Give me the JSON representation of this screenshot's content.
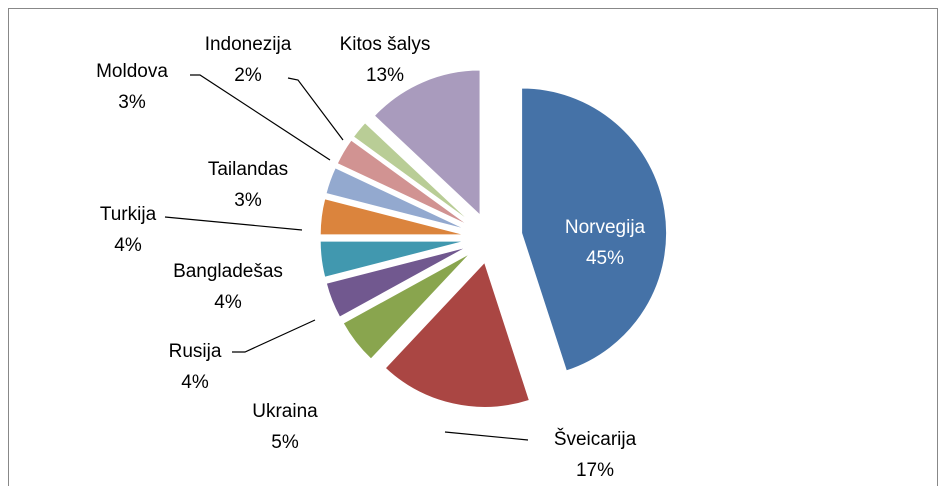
{
  "chart_data": {
    "type": "pie",
    "categories": [
      "Norvegija",
      "Šveicarija",
      "Ukraina",
      "Rusija",
      "Bangladešas",
      "Turkija",
      "Tailandas",
      "Moldova",
      "Indonezija",
      "Kitos šalys"
    ],
    "values": [
      45,
      17,
      5,
      4,
      4,
      4,
      3,
      3,
      2,
      13
    ],
    "value_labels": [
      "45%",
      "17%",
      "5%",
      "4%",
      "4%",
      "4%",
      "3%",
      "3%",
      "2%",
      "13%"
    ],
    "colors": [
      "#4572A7",
      "#AA4643",
      "#89A54E",
      "#71588F",
      "#4198AF",
      "#DB843D",
      "#93A9CF",
      "#D19392",
      "#B9CD96",
      "#A99BBD"
    ]
  }
}
